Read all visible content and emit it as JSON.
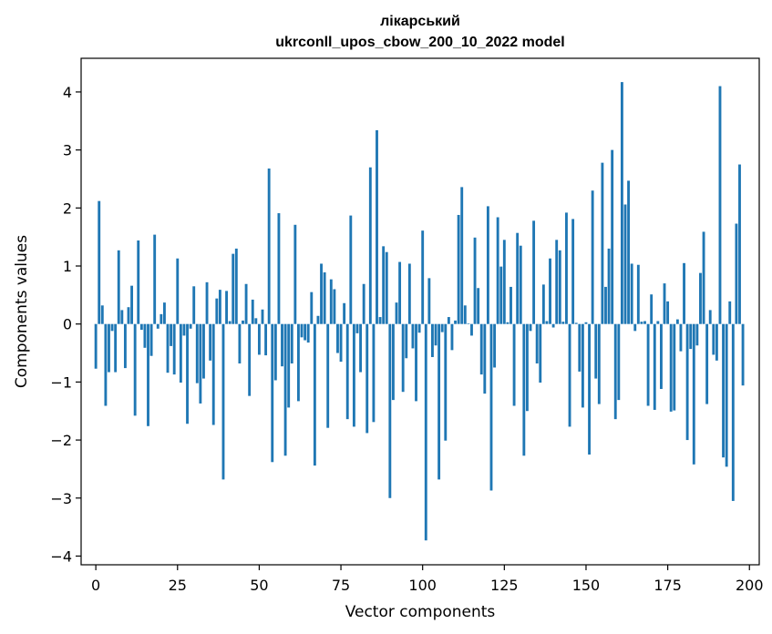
{
  "chart_data": {
    "type": "bar",
    "title": [
      "лікарський",
      "ukrconll_upos_cbow_200_10_2022 model"
    ],
    "xlabel": "Vector components",
    "ylabel": "Components values",
    "xlim": [
      -4.5,
      203
    ],
    "ylim": [
      -4.15,
      4.58
    ],
    "xticks": [
      0,
      25,
      50,
      75,
      100,
      125,
      150,
      175,
      200
    ],
    "yticks": [
      -4,
      -3,
      -2,
      -1,
      0,
      1,
      2,
      3,
      4
    ],
    "bar_color": "#1f77b4",
    "grid": false,
    "legend": "none",
    "values": [
      -0.77,
      2.12,
      0.32,
      -1.41,
      -0.83,
      -0.12,
      -0.83,
      1.27,
      0.24,
      -0.76,
      0.29,
      0.66,
      -1.58,
      1.44,
      -0.1,
      -0.41,
      -1.76,
      -0.55,
      1.54,
      -0.08,
      0.17,
      0.37,
      -0.84,
      -0.38,
      -0.87,
      1.13,
      -1.01,
      -0.2,
      -1.72,
      -0.08,
      0.65,
      -1.02,
      -1.37,
      -0.94,
      0.72,
      -0.63,
      -1.74,
      0.44,
      0.59,
      -2.68,
      0.57,
      0.05,
      1.21,
      1.3,
      -0.68,
      0.06,
      0.69,
      -1.24,
      0.42,
      0.1,
      -0.53,
      0.25,
      -0.54,
      2.68,
      -2.38,
      -0.97,
      1.91,
      -0.73,
      -2.27,
      -1.44,
      -0.68,
      1.71,
      -1.33,
      -0.23,
      -0.28,
      -0.32,
      0.55,
      -2.44,
      0.14,
      1.04,
      0.89,
      -1.79,
      0.77,
      0.6,
      -0.5,
      -0.65,
      0.36,
      -1.64,
      1.87,
      -1.77,
      -0.16,
      -0.83,
      0.69,
      -1.88,
      2.7,
      -1.69,
      3.34,
      0.12,
      1.34,
      1.24,
      -3.0,
      -1.31,
      0.37,
      1.07,
      -1.17,
      -0.59,
      1.04,
      -0.42,
      -1.33,
      -0.15,
      1.61,
      -3.73,
      0.79,
      -0.57,
      -0.37,
      -2.68,
      -0.14,
      -2.01,
      0.12,
      -0.45,
      0.06,
      1.88,
      2.36,
      0.32,
      0.01,
      -0.2,
      1.49,
      0.62,
      -0.87,
      -1.2,
      2.03,
      -2.87,
      -0.75,
      1.84,
      0.99,
      1.45,
      0.03,
      0.64,
      -1.41,
      1.57,
      1.35,
      -2.27,
      -1.5,
      -0.12,
      1.78,
      -0.68,
      -1.01,
      0.68,
      0.05,
      1.13,
      -0.06,
      1.45,
      1.27,
      0.04,
      1.92,
      -1.77,
      1.81,
      0.02,
      -0.82,
      -1.44,
      0.03,
      -2.25,
      2.3,
      -0.94,
      -1.38,
      2.78,
      0.64,
      1.3,
      3.0,
      -1.64,
      -1.31,
      4.17,
      2.06,
      2.47,
      1.04,
      -0.12,
      1.02,
      0.04,
      0.05,
      -1.41,
      0.51,
      -1.48,
      0.05,
      -1.12,
      0.7,
      0.39,
      -1.51,
      -1.49,
      0.08,
      -0.47,
      1.05,
      -2.0,
      -0.43,
      -2.42,
      -0.37,
      0.88,
      1.59,
      -1.38,
      0.24,
      -0.53,
      -0.63,
      4.1,
      -2.3,
      -2.46,
      0.39,
      -3.05,
      1.73,
      2.75,
      -1.06
    ]
  }
}
